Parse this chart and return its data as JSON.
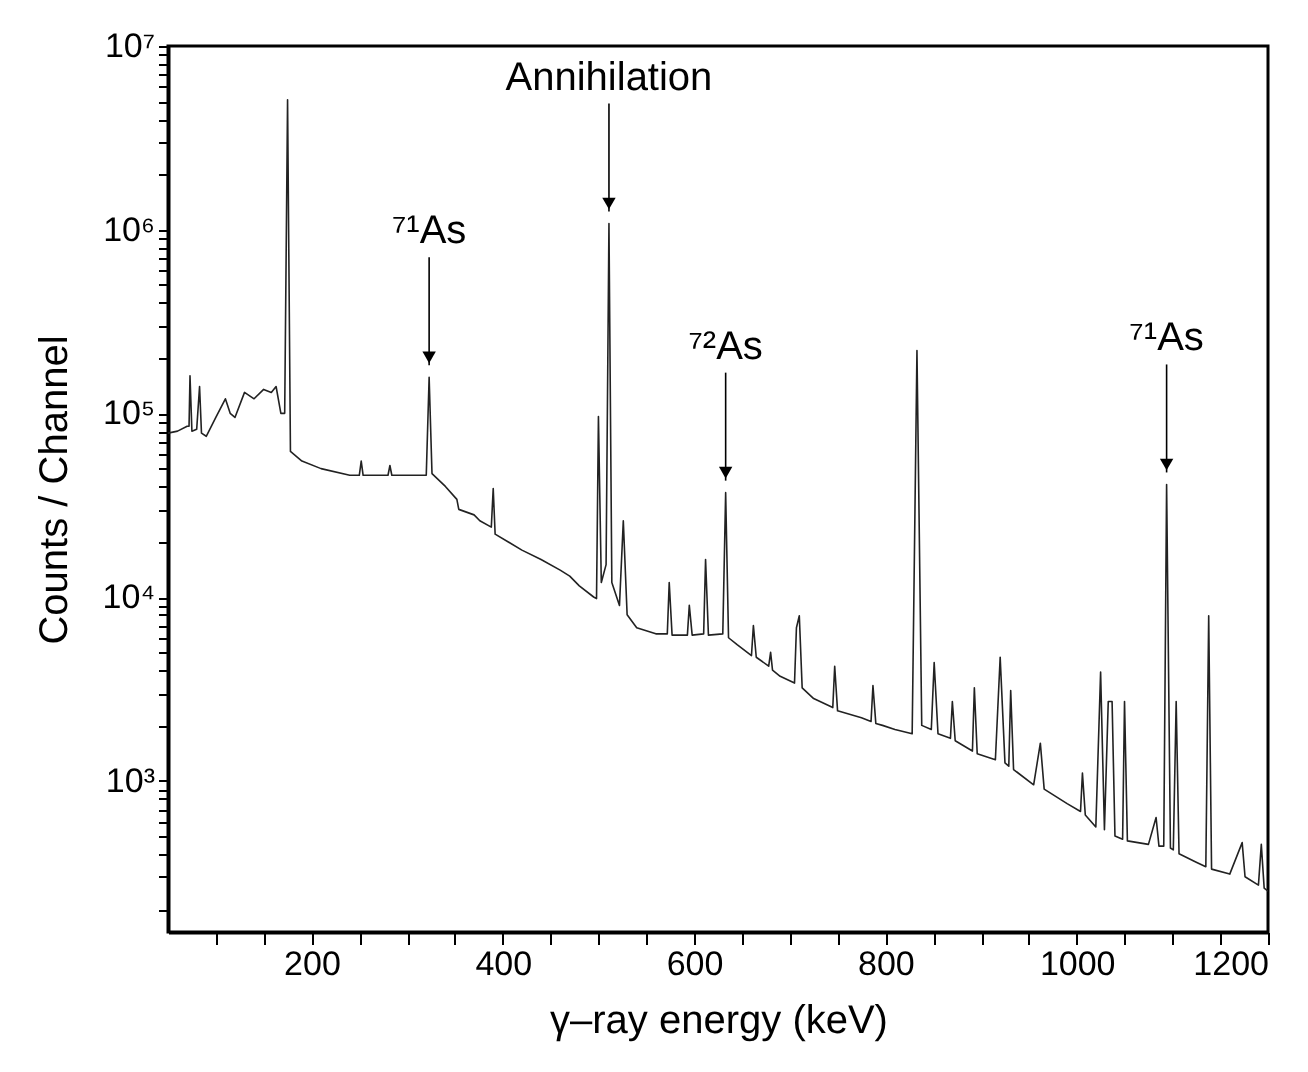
{
  "chart_data": {
    "type": "line",
    "xlabel": "γ–ray energy (keV)",
    "ylabel": "Counts / Channel",
    "log": "y",
    "grid": false,
    "line_style": "solid",
    "marker": "none",
    "xlim": [
      50,
      1200
    ],
    "ylim": [
      150,
      10000000
    ],
    "xticks": [
      {
        "value": 100,
        "label": null
      },
      {
        "value": 150,
        "label": null
      },
      200,
      {
        "value": 250,
        "label": null
      },
      {
        "value": 300,
        "label": null
      },
      {
        "value": 350,
        "label": null
      },
      400,
      {
        "value": 450,
        "label": null
      },
      {
        "value": 500,
        "label": null
      },
      {
        "value": 550,
        "label": null
      },
      600,
      {
        "value": 650,
        "label": null
      },
      {
        "value": 700,
        "label": null
      },
      {
        "value": 750,
        "label": null
      },
      800,
      {
        "value": 850,
        "label": null
      },
      {
        "value": 900,
        "label": null
      },
      {
        "value": 950,
        "label": null
      },
      1000,
      {
        "value": 1050,
        "label": null
      },
      {
        "value": 1100,
        "label": null
      },
      {
        "value": 1150,
        "label": null
      },
      1200
    ],
    "yticks": [
      {
        "value": 200,
        "label": null
      },
      {
        "value": 300,
        "label": null
      },
      {
        "value": 400,
        "label": null
      },
      {
        "value": 500,
        "label": null
      },
      {
        "value": 600,
        "label": null
      },
      {
        "value": 700,
        "label": null
      },
      {
        "value": 800,
        "label": null
      },
      {
        "value": 900,
        "label": null
      },
      {
        "value": 1000,
        "label": "10³"
      },
      {
        "value": 2000,
        "label": null
      },
      {
        "value": 3000,
        "label": null
      },
      {
        "value": 4000,
        "label": null
      },
      {
        "value": 5000,
        "label": null
      },
      {
        "value": 6000,
        "label": null
      },
      {
        "value": 7000,
        "label": null
      },
      {
        "value": 8000,
        "label": null
      },
      {
        "value": 9000,
        "label": null
      },
      {
        "value": 10000,
        "label": "10⁴"
      },
      {
        "value": 20000,
        "label": null
      },
      {
        "value": 30000,
        "label": null
      },
      {
        "value": 40000,
        "label": null
      },
      {
        "value": 50000,
        "label": null
      },
      {
        "value": 60000,
        "label": null
      },
      {
        "value": 70000,
        "label": null
      },
      {
        "value": 80000,
        "label": null
      },
      {
        "value": 90000,
        "label": null
      },
      {
        "value": 100000,
        "label": "10⁵"
      },
      {
        "value": 200000,
        "label": null
      },
      {
        "value": 300000,
        "label": null
      },
      {
        "value": 400000,
        "label": null
      },
      {
        "value": 500000,
        "label": null
      },
      {
        "value": 600000,
        "label": null
      },
      {
        "value": 700000,
        "label": null
      },
      {
        "value": 800000,
        "label": null
      },
      {
        "value": 900000,
        "label": null
      },
      {
        "value": 1000000,
        "label": "10⁶"
      },
      {
        "value": 2000000,
        "label": null
      },
      {
        "value": 3000000,
        "label": null
      },
      {
        "value": 4000000,
        "label": null
      },
      {
        "value": 5000000,
        "label": null
      },
      {
        "value": 6000000,
        "label": null
      },
      {
        "value": 7000000,
        "label": null
      },
      {
        "value": 8000000,
        "label": null
      },
      {
        "value": 9000000,
        "label": null
      },
      {
        "value": 10000000,
        "label": "10⁷"
      }
    ],
    "annotations": [
      {
        "text": "⁷¹As",
        "x": 323,
        "y": 157000
      },
      {
        "text": "Annihilation",
        "x": 511,
        "y": 1080000
      },
      {
        "text": "⁷²As",
        "x": 633,
        "y": 37000
      },
      {
        "text": "⁷¹As",
        "x": 1094,
        "y": 41000
      }
    ],
    "series": [
      {
        "color": "#222222",
        "x": [
          50,
          60,
          70,
          72,
          73,
          75,
          80,
          83,
          85,
          90,
          100,
          110,
          115,
          120,
          130,
          140,
          150,
          158,
          163,
          168,
          172,
          175,
          178,
          190,
          210,
          240,
          250,
          252,
          254,
          280,
          282,
          284,
          320,
          323,
          326,
          340,
          352,
          354,
          370,
          376,
          388,
          390,
          392,
          420,
          440,
          460,
          470,
          480,
          495,
          498,
          500,
          503,
          508,
          511,
          514,
          522,
          526,
          530,
          540,
          560,
          572,
          574,
          577,
          593,
          595,
          598,
          610,
          612,
          615,
          630,
          633,
          636,
          645,
          660,
          662,
          665,
          678,
          680,
          682,
          690,
          705,
          707,
          710,
          713,
          725,
          745,
          747,
          750,
          775,
          785,
          787,
          790,
          797,
          810,
          828,
          833,
          838,
          848,
          851,
          855,
          868,
          870,
          873,
          891,
          893,
          896,
          915,
          920,
          925,
          929,
          931,
          934,
          955,
          962,
          966,
          990,
          1004,
          1006,
          1009,
          1020,
          1025,
          1029,
          1033,
          1037,
          1040,
          1048,
          1050,
          1053,
          1075,
          1083,
          1086,
          1091,
          1094,
          1098,
          1101,
          1104,
          1107,
          1125,
          1135,
          1138,
          1141,
          1160,
          1173,
          1176,
          1190,
          1193,
          1196,
          1200
        ],
        "values": [
          78000,
          80000,
          85000,
          85000,
          160000,
          80000,
          82000,
          140000,
          78000,
          75000,
          95000,
          120000,
          100000,
          95000,
          130000,
          120000,
          135000,
          130000,
          140000,
          100000,
          100000,
          5100000,
          62000,
          55000,
          50000,
          46000,
          46000,
          55000,
          46000,
          46000,
          52000,
          46000,
          46000,
          157000,
          47000,
          40000,
          34000,
          30000,
          28000,
          26000,
          24000,
          39000,
          22000,
          18000,
          16000,
          14000,
          13000,
          11500,
          10000,
          9800,
          96000,
          12000,
          15000,
          1080000,
          12000,
          9000,
          26000,
          8000,
          6800,
          6300,
          6300,
          12000,
          6200,
          6200,
          9000,
          6200,
          6300,
          16000,
          6200,
          6300,
          37000,
          6000,
          5500,
          4800,
          7000,
          4700,
          4200,
          5000,
          4000,
          3700,
          3400,
          6800,
          7900,
          3200,
          2800,
          2500,
          4200,
          2400,
          2200,
          2100,
          3300,
          2050,
          2000,
          1900,
          1800,
          220000,
          2000,
          1900,
          4400,
          1800,
          1700,
          2700,
          1650,
          1450,
          3200,
          1400,
          1300,
          4700,
          1250,
          1200,
          3100,
          1150,
          950,
          1600,
          900,
          750,
          680,
          1100,
          650,
          560,
          3900,
          540,
          2700,
          2700,
          500,
          480,
          2700,
          470,
          450,
          630,
          440,
          440,
          41000,
          430,
          420,
          2700,
          400,
          360,
          340,
          7900,
          330,
          310,
          460,
          300,
          270,
          450,
          260,
          250
        ]
      }
    ]
  }
}
